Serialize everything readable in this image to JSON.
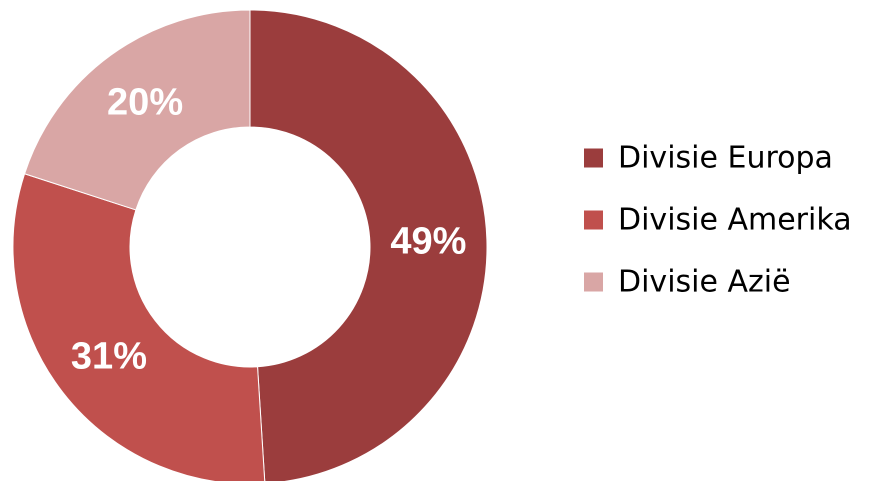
{
  "chart_data": {
    "type": "pie",
    "donut": true,
    "categories": [
      "Divisie Europa",
      "Divisie Amerika",
      "Divisie Azië"
    ],
    "values": [
      49,
      31,
      20
    ],
    "data_labels": [
      "49%",
      "31%",
      "20%"
    ],
    "colors": [
      "#9b3d3d",
      "#c0504d",
      "#d9a6a5"
    ],
    "legend_position": "right",
    "title": ""
  }
}
